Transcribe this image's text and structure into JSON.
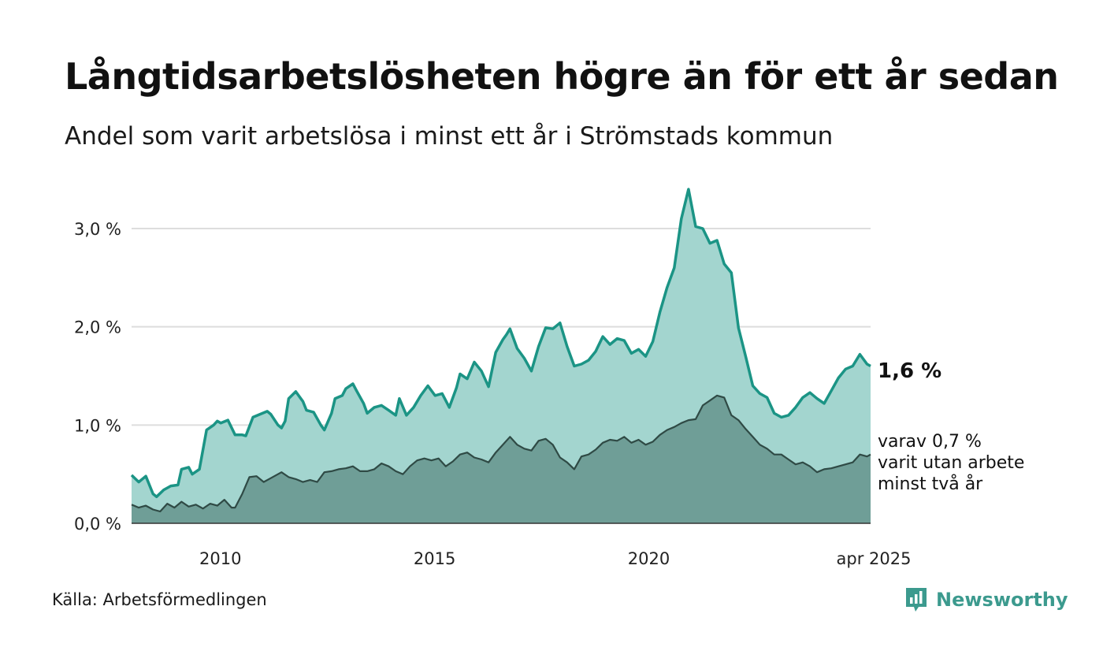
{
  "header": {
    "title": "Långtidsarbetslösheten högre än för ett år sedan",
    "subtitle": "Andel som varit arbetslösa i minst ett år i Strömstads kommun"
  },
  "footer": {
    "source": "Källa: Arbetsförmedlingen",
    "brand": "Newsworthy"
  },
  "colors": {
    "upper_area": "#a3d5cf",
    "upper_line": "#1b9485",
    "lower_area": "#6f9e97",
    "lower_line": "#2f4a45",
    "grid": "#dddddd",
    "brand": "#3c9a8e"
  },
  "chart_data": {
    "type": "area",
    "x_start": "2008-01",
    "x_end": "2025-04",
    "x_ticks": [
      {
        "value": "2010-01",
        "label": "2010"
      },
      {
        "value": "2015-01",
        "label": "2015"
      },
      {
        "value": "2020-01",
        "label": "2020"
      },
      {
        "value": "2025-04",
        "label": "apr 2025"
      }
    ],
    "y_ticks": [
      {
        "value": 0,
        "label": "0,0 %"
      },
      {
        "value": 1,
        "label": "1,0 %"
      },
      {
        "value": 2,
        "label": "2,0 %"
      },
      {
        "value": 3,
        "label": "3,0 %"
      }
    ],
    "ylim": [
      0,
      3.45
    ],
    "grid": true,
    "series": [
      {
        "key": "total",
        "points": [
          [
            "2008-01",
            0.49
          ],
          [
            "2008-03",
            0.42
          ],
          [
            "2008-05",
            0.48
          ],
          [
            "2008-07",
            0.3
          ],
          [
            "2008-08",
            0.27
          ],
          [
            "2008-10",
            0.34
          ],
          [
            "2008-12",
            0.38
          ],
          [
            "2009-02",
            0.39
          ],
          [
            "2009-03",
            0.55
          ],
          [
            "2009-05",
            0.57
          ],
          [
            "2009-06",
            0.5
          ],
          [
            "2009-08",
            0.55
          ],
          [
            "2009-10",
            0.95
          ],
          [
            "2009-12",
            1.0
          ],
          [
            "2010-01",
            1.04
          ],
          [
            "2010-02",
            1.02
          ],
          [
            "2010-04",
            1.05
          ],
          [
            "2010-06",
            0.9
          ],
          [
            "2010-08",
            0.9
          ],
          [
            "2010-09",
            0.89
          ],
          [
            "2010-11",
            1.08
          ],
          [
            "2011-01",
            1.11
          ],
          [
            "2011-03",
            1.14
          ],
          [
            "2011-04",
            1.11
          ],
          [
            "2011-06",
            1.0
          ],
          [
            "2011-07",
            0.97
          ],
          [
            "2011-08",
            1.04
          ],
          [
            "2011-09",
            1.27
          ],
          [
            "2011-11",
            1.34
          ],
          [
            "2012-01",
            1.24
          ],
          [
            "2012-02",
            1.15
          ],
          [
            "2012-04",
            1.13
          ],
          [
            "2012-06",
            1.0
          ],
          [
            "2012-07",
            0.95
          ],
          [
            "2012-09",
            1.12
          ],
          [
            "2012-10",
            1.27
          ],
          [
            "2012-12",
            1.3
          ],
          [
            "2013-01",
            1.37
          ],
          [
            "2013-03",
            1.42
          ],
          [
            "2013-04",
            1.35
          ],
          [
            "2013-06",
            1.22
          ],
          [
            "2013-07",
            1.12
          ],
          [
            "2013-09",
            1.18
          ],
          [
            "2013-11",
            1.2
          ],
          [
            "2014-01",
            1.15
          ],
          [
            "2014-03",
            1.1
          ],
          [
            "2014-04",
            1.27
          ],
          [
            "2014-06",
            1.1
          ],
          [
            "2014-08",
            1.18
          ],
          [
            "2014-10",
            1.3
          ],
          [
            "2014-12",
            1.4
          ],
          [
            "2015-02",
            1.3
          ],
          [
            "2015-04",
            1.32
          ],
          [
            "2015-06",
            1.18
          ],
          [
            "2015-08",
            1.38
          ],
          [
            "2015-09",
            1.52
          ],
          [
            "2015-11",
            1.47
          ],
          [
            "2016-01",
            1.64
          ],
          [
            "2016-03",
            1.55
          ],
          [
            "2016-05",
            1.39
          ],
          [
            "2016-07",
            1.74
          ],
          [
            "2016-09",
            1.87
          ],
          [
            "2016-10",
            1.92
          ],
          [
            "2016-11",
            1.98
          ],
          [
            "2017-01",
            1.78
          ],
          [
            "2017-03",
            1.68
          ],
          [
            "2017-05",
            1.55
          ],
          [
            "2017-07",
            1.8
          ],
          [
            "2017-09",
            1.99
          ],
          [
            "2017-11",
            1.98
          ],
          [
            "2018-01",
            2.04
          ],
          [
            "2018-03",
            1.8
          ],
          [
            "2018-05",
            1.6
          ],
          [
            "2018-07",
            1.62
          ],
          [
            "2018-09",
            1.66
          ],
          [
            "2018-11",
            1.75
          ],
          [
            "2019-01",
            1.9
          ],
          [
            "2019-03",
            1.82
          ],
          [
            "2019-05",
            1.88
          ],
          [
            "2019-07",
            1.86
          ],
          [
            "2019-09",
            1.73
          ],
          [
            "2019-11",
            1.77
          ],
          [
            "2020-01",
            1.7
          ],
          [
            "2020-03",
            1.85
          ],
          [
            "2020-05",
            2.15
          ],
          [
            "2020-07",
            2.4
          ],
          [
            "2020-09",
            2.6
          ],
          [
            "2020-11",
            3.1
          ],
          [
            "2021-01",
            3.4
          ],
          [
            "2021-03",
            3.02
          ],
          [
            "2021-05",
            3.0
          ],
          [
            "2021-07",
            2.85
          ],
          [
            "2021-09",
            2.88
          ],
          [
            "2021-11",
            2.64
          ],
          [
            "2022-01",
            2.55
          ],
          [
            "2022-03",
            1.99
          ],
          [
            "2022-05",
            1.7
          ],
          [
            "2022-07",
            1.4
          ],
          [
            "2022-09",
            1.32
          ],
          [
            "2022-11",
            1.28
          ],
          [
            "2023-01",
            1.12
          ],
          [
            "2023-03",
            1.08
          ],
          [
            "2023-05",
            1.1
          ],
          [
            "2023-07",
            1.18
          ],
          [
            "2023-09",
            1.28
          ],
          [
            "2023-11",
            1.33
          ],
          [
            "2024-01",
            1.27
          ],
          [
            "2024-03",
            1.22
          ],
          [
            "2024-05",
            1.35
          ],
          [
            "2024-07",
            1.48
          ],
          [
            "2024-09",
            1.57
          ],
          [
            "2024-11",
            1.6
          ],
          [
            "2025-01",
            1.72
          ],
          [
            "2025-03",
            1.62
          ],
          [
            "2025-04",
            1.6
          ]
        ]
      },
      {
        "key": "two_years",
        "points": [
          [
            "2008-01",
            0.19
          ],
          [
            "2008-03",
            0.16
          ],
          [
            "2008-05",
            0.18
          ],
          [
            "2008-07",
            0.14
          ],
          [
            "2008-09",
            0.12
          ],
          [
            "2008-11",
            0.2
          ],
          [
            "2009-01",
            0.16
          ],
          [
            "2009-03",
            0.22
          ],
          [
            "2009-05",
            0.17
          ],
          [
            "2009-07",
            0.19
          ],
          [
            "2009-09",
            0.15
          ],
          [
            "2009-11",
            0.2
          ],
          [
            "2010-01",
            0.18
          ],
          [
            "2010-03",
            0.24
          ],
          [
            "2010-05",
            0.16
          ],
          [
            "2010-06",
            0.16
          ],
          [
            "2010-08",
            0.3
          ],
          [
            "2010-10",
            0.47
          ],
          [
            "2010-12",
            0.48
          ],
          [
            "2011-02",
            0.42
          ],
          [
            "2011-04",
            0.46
          ],
          [
            "2011-07",
            0.52
          ],
          [
            "2011-09",
            0.47
          ],
          [
            "2011-11",
            0.45
          ],
          [
            "2012-01",
            0.42
          ],
          [
            "2012-03",
            0.44
          ],
          [
            "2012-05",
            0.42
          ],
          [
            "2012-07",
            0.52
          ],
          [
            "2012-09",
            0.53
          ],
          [
            "2012-11",
            0.55
          ],
          [
            "2013-01",
            0.56
          ],
          [
            "2013-03",
            0.58
          ],
          [
            "2013-05",
            0.53
          ],
          [
            "2013-07",
            0.53
          ],
          [
            "2013-09",
            0.55
          ],
          [
            "2013-11",
            0.61
          ],
          [
            "2014-01",
            0.58
          ],
          [
            "2014-03",
            0.53
          ],
          [
            "2014-05",
            0.5
          ],
          [
            "2014-07",
            0.58
          ],
          [
            "2014-09",
            0.64
          ],
          [
            "2014-11",
            0.66
          ],
          [
            "2015-01",
            0.64
          ],
          [
            "2015-03",
            0.66
          ],
          [
            "2015-05",
            0.58
          ],
          [
            "2015-07",
            0.63
          ],
          [
            "2015-09",
            0.7
          ],
          [
            "2015-11",
            0.72
          ],
          [
            "2016-01",
            0.67
          ],
          [
            "2016-03",
            0.65
          ],
          [
            "2016-05",
            0.62
          ],
          [
            "2016-07",
            0.72
          ],
          [
            "2016-09",
            0.8
          ],
          [
            "2016-11",
            0.88
          ],
          [
            "2017-01",
            0.8
          ],
          [
            "2017-03",
            0.76
          ],
          [
            "2017-05",
            0.74
          ],
          [
            "2017-07",
            0.84
          ],
          [
            "2017-09",
            0.86
          ],
          [
            "2017-11",
            0.8
          ],
          [
            "2018-01",
            0.67
          ],
          [
            "2018-03",
            0.62
          ],
          [
            "2018-05",
            0.55
          ],
          [
            "2018-07",
            0.68
          ],
          [
            "2018-09",
            0.7
          ],
          [
            "2018-11",
            0.75
          ],
          [
            "2019-01",
            0.82
          ],
          [
            "2019-03",
            0.85
          ],
          [
            "2019-05",
            0.84
          ],
          [
            "2019-07",
            0.88
          ],
          [
            "2019-09",
            0.82
          ],
          [
            "2019-11",
            0.85
          ],
          [
            "2020-01",
            0.8
          ],
          [
            "2020-03",
            0.83
          ],
          [
            "2020-05",
            0.9
          ],
          [
            "2020-07",
            0.95
          ],
          [
            "2020-09",
            0.98
          ],
          [
            "2020-11",
            1.02
          ],
          [
            "2021-01",
            1.05
          ],
          [
            "2021-03",
            1.06
          ],
          [
            "2021-05",
            1.2
          ],
          [
            "2021-07",
            1.25
          ],
          [
            "2021-09",
            1.3
          ],
          [
            "2021-11",
            1.28
          ],
          [
            "2022-01",
            1.1
          ],
          [
            "2022-03",
            1.05
          ],
          [
            "2022-05",
            0.96
          ],
          [
            "2022-07",
            0.88
          ],
          [
            "2022-09",
            0.8
          ],
          [
            "2022-11",
            0.76
          ],
          [
            "2023-01",
            0.7
          ],
          [
            "2023-03",
            0.7
          ],
          [
            "2023-05",
            0.65
          ],
          [
            "2023-07",
            0.6
          ],
          [
            "2023-09",
            0.62
          ],
          [
            "2023-11",
            0.58
          ],
          [
            "2024-01",
            0.52
          ],
          [
            "2024-03",
            0.55
          ],
          [
            "2024-05",
            0.56
          ],
          [
            "2024-07",
            0.58
          ],
          [
            "2024-09",
            0.6
          ],
          [
            "2024-11",
            0.62
          ],
          [
            "2025-01",
            0.7
          ],
          [
            "2025-03",
            0.68
          ],
          [
            "2025-04",
            0.7
          ]
        ]
      }
    ],
    "annotations": {
      "end_value": "1,6 %",
      "sub_lines": [
        "varav 0,7 %",
        "varit utan arbete",
        "minst två år"
      ]
    }
  }
}
